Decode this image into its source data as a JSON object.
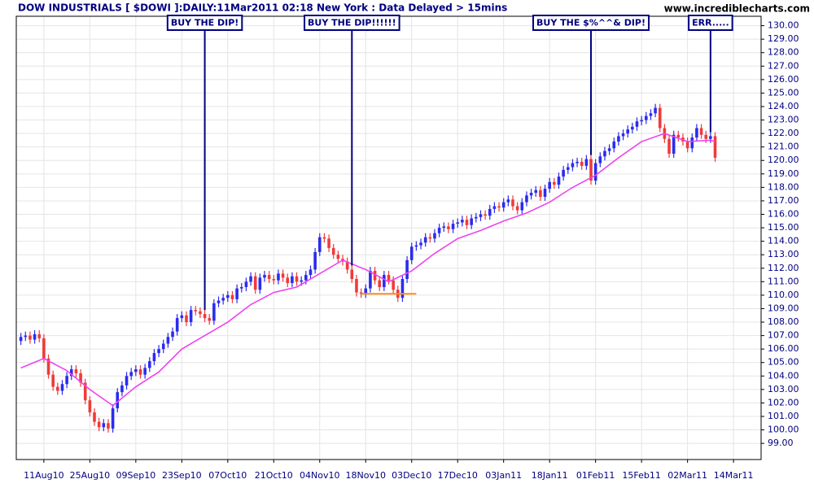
{
  "chart_data": {
    "type": "candlestick",
    "title": "DOW INDUSTRIALS [ $DOWI ]:DAILY:11Mar2011 02:18 New York : Data Delayed > 15mins",
    "source": "www.incrediblecharts.com",
    "categories": [
      null,
      null,
      null,
      null,
      null,
      "11Aug10",
      null,
      null,
      null,
      null,
      null,
      null,
      null,
      null,
      null,
      "25Aug10",
      null,
      null,
      null,
      null,
      null,
      null,
      null,
      null,
      null,
      "09Sep10",
      null,
      null,
      null,
      null,
      null,
      null,
      null,
      null,
      null,
      "23Sep10",
      null,
      null,
      null,
      null,
      null,
      null,
      null,
      null,
      null,
      "07Oct10",
      null,
      null,
      null,
      null,
      null,
      null,
      null,
      null,
      null,
      "21Oct10",
      null,
      null,
      null,
      null,
      null,
      null,
      null,
      null,
      null,
      "04Nov10",
      null,
      null,
      null,
      null,
      null,
      null,
      null,
      null,
      null,
      "18Nov10",
      null,
      null,
      null,
      null,
      null,
      null,
      null,
      null,
      null,
      "03Dec10",
      null,
      null,
      null,
      null,
      null,
      null,
      null,
      null,
      null,
      "17Dec10",
      null,
      null,
      null,
      null,
      null,
      null,
      null,
      null,
      null,
      "03Jan11",
      null,
      null,
      null,
      null,
      null,
      null,
      null,
      null,
      null,
      "18Jan11",
      null,
      null,
      null,
      null,
      null,
      null,
      null,
      null,
      null,
      "01Feb11",
      null,
      null,
      null,
      null,
      null,
      null,
      null,
      null,
      null,
      "15Feb11",
      null,
      null,
      null,
      null,
      null,
      null,
      null,
      null,
      null,
      "02Mar11",
      null,
      null,
      null,
      null,
      null,
      null,
      null,
      null,
      null,
      "14Mar11"
    ],
    "open": [
      106.6,
      106.9,
      107.0,
      106.7,
      107.1,
      106.8,
      105.3,
      104.1,
      103.2,
      102.9,
      103.4,
      104.0,
      104.5,
      104.2,
      103.5,
      102.2,
      101.3,
      100.6,
      100.2,
      100.5,
      100.1,
      101.6,
      102.8,
      103.3,
      104.0,
      104.3,
      104.5,
      104.1,
      104.6,
      105.1,
      105.7,
      106.0,
      106.4,
      106.9,
      107.3,
      108.3,
      108.5,
      108.0,
      108.9,
      108.8,
      108.6,
      108.3,
      108.1,
      109.4,
      109.6,
      109.8,
      110.0,
      109.7,
      110.5,
      110.6,
      111.0,
      111.4,
      110.4,
      111.3,
      111.5,
      111.2,
      111.1,
      111.6,
      111.3,
      110.9,
      111.4,
      111.0,
      111.1,
      111.5,
      111.9,
      113.2,
      114.3,
      114.2,
      113.5,
      113.0,
      112.7,
      112.5,
      111.9,
      111.2,
      110.2,
      110.1,
      110.5,
      111.8,
      111.1,
      110.6,
      111.5,
      111.1,
      110.4,
      109.8,
      111.2,
      112.6,
      113.6,
      113.7,
      113.9,
      114.3,
      114.2,
      114.6,
      115.0,
      115.1,
      114.9,
      115.3,
      115.4,
      115.6,
      115.2,
      115.7,
      115.8,
      116.0,
      115.9,
      116.4,
      116.6,
      116.5,
      116.9,
      117.1,
      116.6,
      116.3,
      116.9,
      117.4,
      117.6,
      117.8,
      117.3,
      117.9,
      118.4,
      118.2,
      118.8,
      119.3,
      119.5,
      119.8,
      119.9,
      119.6,
      120.1,
      118.5,
      119.8,
      120.3,
      120.7,
      120.9,
      121.4,
      121.8,
      122.0,
      122.3,
      122.5,
      122.9,
      123.0,
      123.3,
      123.5,
      123.9,
      122.4,
      121.6,
      120.5,
      121.9,
      121.7,
      121.4,
      120.9,
      121.7,
      122.4,
      121.9,
      121.6,
      121.8,
      null,
      null,
      null,
      null
    ],
    "high": [
      107.2,
      107.3,
      107.3,
      107.4,
      107.4,
      107.1,
      105.6,
      104.4,
      103.5,
      103.7,
      104.3,
      104.8,
      104.8,
      104.5,
      103.8,
      102.5,
      101.6,
      100.9,
      100.8,
      100.8,
      101.9,
      103.1,
      103.6,
      104.3,
      104.6,
      104.8,
      104.8,
      104.9,
      105.4,
      106.0,
      106.3,
      106.7,
      107.2,
      107.6,
      108.6,
      108.8,
      108.8,
      109.2,
      109.2,
      109.1,
      108.9,
      108.6,
      109.7,
      109.9,
      110.1,
      110.3,
      110.3,
      110.8,
      110.9,
      111.3,
      111.7,
      111.7,
      111.6,
      111.8,
      111.8,
      111.5,
      111.9,
      111.9,
      111.6,
      111.7,
      111.7,
      111.4,
      111.8,
      112.2,
      113.5,
      114.6,
      114.6,
      114.5,
      113.8,
      113.3,
      113.0,
      112.8,
      112.2,
      111.5,
      110.5,
      110.8,
      112.1,
      112.1,
      111.4,
      111.8,
      111.8,
      111.4,
      110.7,
      111.5,
      112.9,
      113.9,
      114.0,
      114.2,
      114.6,
      114.6,
      114.9,
      115.3,
      115.4,
      115.4,
      115.6,
      115.7,
      115.9,
      115.9,
      116.0,
      116.1,
      116.3,
      116.3,
      116.7,
      116.9,
      116.9,
      117.2,
      117.4,
      117.4,
      116.9,
      117.2,
      117.7,
      117.9,
      118.1,
      118.1,
      118.2,
      118.7,
      118.7,
      119.1,
      119.6,
      119.8,
      120.1,
      120.2,
      120.2,
      120.4,
      120.4,
      120.1,
      120.6,
      121.0,
      121.2,
      121.7,
      122.1,
      122.3,
      122.6,
      122.8,
      123.2,
      123.3,
      123.6,
      123.8,
      124.2,
      124.2,
      122.7,
      121.9,
      122.2,
      122.2,
      122.0,
      121.7,
      122.0,
      122.7,
      122.7,
      122.2,
      122.1,
      122.1,
      null,
      null,
      null,
      null
    ],
    "low": [
      106.3,
      106.6,
      106.4,
      106.4,
      106.5,
      105.0,
      103.8,
      102.9,
      102.6,
      102.6,
      103.1,
      103.7,
      103.9,
      103.2,
      101.9,
      101.0,
      100.3,
      99.9,
      99.9,
      99.8,
      99.8,
      101.3,
      102.5,
      103.0,
      103.7,
      104.0,
      103.8,
      103.8,
      104.3,
      104.8,
      105.4,
      105.7,
      106.1,
      106.6,
      107.0,
      108.0,
      107.7,
      107.7,
      108.5,
      108.3,
      108.0,
      107.8,
      107.8,
      109.1,
      109.3,
      109.5,
      109.4,
      109.4,
      110.2,
      110.3,
      110.7,
      110.1,
      110.1,
      111.0,
      110.9,
      110.8,
      110.8,
      111.0,
      110.6,
      110.6,
      110.7,
      110.7,
      110.8,
      111.2,
      111.6,
      112.9,
      113.9,
      113.2,
      112.7,
      112.4,
      112.2,
      111.6,
      110.9,
      109.9,
      109.8,
      109.8,
      110.2,
      110.8,
      110.3,
      110.3,
      110.8,
      110.1,
      109.5,
      109.5,
      110.9,
      112.3,
      113.3,
      113.4,
      113.6,
      113.9,
      113.9,
      114.3,
      114.7,
      114.6,
      114.6,
      115.0,
      115.1,
      114.9,
      114.9,
      115.4,
      115.5,
      115.6,
      115.6,
      116.1,
      116.2,
      116.2,
      116.6,
      116.3,
      116.0,
      116.0,
      116.6,
      117.1,
      117.3,
      117.0,
      117.0,
      117.6,
      117.9,
      117.9,
      118.5,
      119.0,
      119.2,
      119.5,
      119.3,
      119.3,
      118.2,
      118.2,
      119.5,
      120.0,
      120.4,
      120.6,
      121.1,
      121.5,
      121.7,
      122.0,
      122.2,
      122.6,
      122.7,
      123.0,
      123.2,
      122.1,
      121.3,
      120.2,
      120.2,
      121.4,
      121.1,
      120.6,
      120.6,
      121.4,
      121.6,
      121.3,
      121.3,
      119.9,
      null,
      null,
      null,
      null
    ],
    "close": [
      106.9,
      107.0,
      106.7,
      107.1,
      106.8,
      105.3,
      104.1,
      103.2,
      102.9,
      103.4,
      104.0,
      104.5,
      104.2,
      103.5,
      102.2,
      101.3,
      100.6,
      100.2,
      100.5,
      100.1,
      101.6,
      102.8,
      103.3,
      104.0,
      104.3,
      104.5,
      104.1,
      104.6,
      105.1,
      105.7,
      106.0,
      106.4,
      106.9,
      107.3,
      108.3,
      108.5,
      108.0,
      108.9,
      108.8,
      108.6,
      108.3,
      108.1,
      109.4,
      109.6,
      109.8,
      110.0,
      109.7,
      110.5,
      110.6,
      111.0,
      111.4,
      110.4,
      111.3,
      111.5,
      111.2,
      111.1,
      111.6,
      111.3,
      110.9,
      111.4,
      111.0,
      111.1,
      111.5,
      111.9,
      113.2,
      114.3,
      114.2,
      113.5,
      113.0,
      112.7,
      112.5,
      111.9,
      111.2,
      110.2,
      110.1,
      110.5,
      111.8,
      111.1,
      110.6,
      111.5,
      111.1,
      110.4,
      109.8,
      111.2,
      112.6,
      113.6,
      113.7,
      113.9,
      114.3,
      114.2,
      114.6,
      115.0,
      115.1,
      114.9,
      115.3,
      115.4,
      115.6,
      115.2,
      115.7,
      115.8,
      116.0,
      115.9,
      116.4,
      116.6,
      116.5,
      116.9,
      117.1,
      116.6,
      116.3,
      116.9,
      117.4,
      117.6,
      117.8,
      117.3,
      117.9,
      118.4,
      118.2,
      118.8,
      119.3,
      119.5,
      119.8,
      119.9,
      119.6,
      120.1,
      118.5,
      119.8,
      120.3,
      120.7,
      120.9,
      121.4,
      121.8,
      122.0,
      122.3,
      122.5,
      122.9,
      123.0,
      123.3,
      123.5,
      123.9,
      122.4,
      121.6,
      120.5,
      121.9,
      121.7,
      121.4,
      120.9,
      121.7,
      122.4,
      121.9,
      121.6,
      121.8,
      120.2,
      null,
      null,
      null,
      null
    ],
    "up_color": "#2b2bf0",
    "down_color": "#f03a3a",
    "moving_average": {
      "color": "#ee44ee",
      "x": [
        0,
        5,
        10,
        15,
        20,
        25,
        30,
        35,
        40,
        45,
        50,
        55,
        60,
        65,
        70,
        75,
        80,
        85,
        90,
        95,
        100,
        105,
        110,
        115,
        120,
        125,
        130,
        135,
        140,
        145,
        150,
        151
      ],
      "values": [
        104.6,
        105.3,
        104.4,
        103.0,
        101.8,
        103.2,
        104.3,
        106.0,
        107.0,
        108.0,
        109.3,
        110.2,
        110.6,
        111.6,
        112.6,
        111.9,
        111.0,
        111.8,
        113.1,
        114.2,
        114.8,
        115.5,
        116.1,
        116.9,
        118.0,
        118.9,
        120.2,
        121.4,
        122.0,
        121.4,
        121.5,
        121.4
      ]
    },
    "support_line": {
      "x": [
        74,
        86
      ],
      "value": 110.1,
      "color": "#ff8c1a"
    },
    "annotations": [
      {
        "text": "BUY THE DIP!",
        "x": 40
      },
      {
        "text": "BUY THE DIP!!!!!!",
        "x": 72
      },
      {
        "text": "BUY THE $%^^& DIP!",
        "x": 124
      },
      {
        "text": "ERR.....",
        "x": 150
      }
    ],
    "ylim": [
      97.8,
      130.7
    ],
    "yticks": [
      {
        "value": 99,
        "label": "99.00"
      },
      {
        "value": 100,
        "label": "100.00"
      },
      {
        "value": 101,
        "label": "101.00"
      },
      {
        "value": 102,
        "label": "102.00"
      },
      {
        "value": 103,
        "label": "103.00"
      },
      {
        "value": 104,
        "label": "104.00"
      },
      {
        "value": 105,
        "label": "105.00"
      },
      {
        "value": 106,
        "label": "106.00"
      },
      {
        "value": 107,
        "label": "107.00"
      },
      {
        "value": 108,
        "label": "108.00"
      },
      {
        "value": 109,
        "label": "109.00"
      },
      {
        "value": 110,
        "label": "110.00"
      },
      {
        "value": 111,
        "label": "111.00"
      },
      {
        "value": 112,
        "label": "112.00"
      },
      {
        "value": 113,
        "label": "113.00"
      },
      {
        "value": 114,
        "label": "114.00"
      },
      {
        "value": 115,
        "label": "115.00"
      },
      {
        "value": 116,
        "label": "116.00"
      },
      {
        "value": 117,
        "label": "117.00"
      },
      {
        "value": 118,
        "label": "118.00"
      },
      {
        "value": 119,
        "label": "119.00"
      },
      {
        "value": 120,
        "label": "120.00"
      },
      {
        "value": 121,
        "label": "121.00"
      },
      {
        "value": 122,
        "label": "122.00"
      },
      {
        "value": 123,
        "label": "123.00"
      },
      {
        "value": 124,
        "label": "124.00"
      },
      {
        "value": 125,
        "label": "125.00"
      },
      {
        "value": 126,
        "label": "126.00"
      },
      {
        "value": 127,
        "label": "127.00"
      },
      {
        "value": 128,
        "label": "128.00"
      },
      {
        "value": 129,
        "label": "129.00"
      },
      {
        "value": 130,
        "label": "130.00"
      }
    ],
    "grid": true
  }
}
